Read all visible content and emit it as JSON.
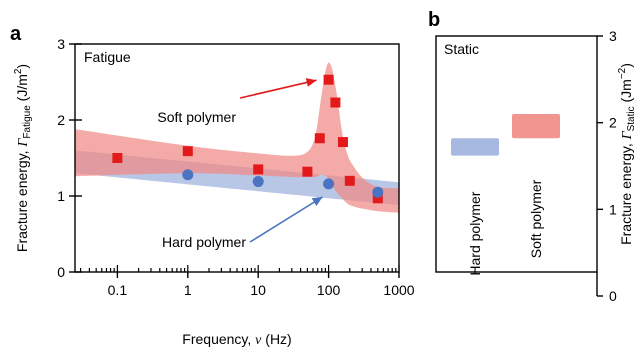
{
  "colors": {
    "soft": "#e31a1c",
    "soft_band": "#f08a85",
    "hard": "#4a73c2",
    "hard_band": "#9eb1de",
    "axis": "#000000"
  },
  "chart_data": [
    {
      "type": "scatter",
      "panel_label": "a",
      "panel_title": "Fatigue",
      "xscale": "log",
      "xlim": [
        0.025,
        1000
      ],
      "ylim": [
        0,
        3
      ],
      "xticks": [
        0.1,
        1,
        10,
        100,
        1000
      ],
      "xtick_labels": [
        "0.1",
        "1",
        "10",
        "100",
        "1000"
      ],
      "yticks": [
        0,
        1,
        2,
        3
      ],
      "ytick_labels": [
        "0",
        "1",
        "2",
        "3"
      ],
      "xlabel_prefix": "Frequency, ",
      "xlabel_symbol": "ν",
      "xlabel_suffix": " (Hz)",
      "ylabel_prefix": "Fracture energy, ",
      "ylabel_symbol": "Γ",
      "ylabel_subscript": "Fatigue",
      "ylabel_units": " (J/m",
      "ylabel_units_sup": "2",
      "ylabel_units_end": ")",
      "series": [
        {
          "name": "Soft polymer",
          "marker": "square",
          "color": "soft",
          "x": [
            0.1,
            1,
            10,
            50,
            75,
            100,
            125,
            160,
            200,
            500
          ],
          "y": [
            1.5,
            1.59,
            1.35,
            1.32,
            1.76,
            2.53,
            2.23,
            1.71,
            1.2,
            0.97
          ]
        },
        {
          "name": "Hard polymer",
          "marker": "circle",
          "color": "hard",
          "x": [
            1,
            10,
            100,
            500
          ],
          "y": [
            1.28,
            1.19,
            1.16,
            1.05
          ]
        }
      ],
      "bands": [
        {
          "series": "Hard polymer",
          "color": "hard_band",
          "x": [
            0.025,
            1000
          ],
          "upper": [
            1.6,
            1.18
          ],
          "lower": [
            1.3,
            0.88
          ]
        },
        {
          "series": "Soft polymer",
          "color": "soft_band",
          "x": [
            0.025,
            1,
            10,
            30,
            50,
            65,
            80,
            95,
            110,
            130,
            155,
            185,
            230,
            320,
            500,
            1000
          ],
          "upper": [
            1.88,
            1.66,
            1.56,
            1.53,
            1.58,
            1.8,
            2.35,
            2.72,
            2.7,
            2.35,
            1.85,
            1.55,
            1.38,
            1.22,
            1.12,
            1.1
          ],
          "lower": [
            1.26,
            1.3,
            1.27,
            1.25,
            1.25,
            1.25,
            1.28,
            1.25,
            1.15,
            1.05,
            0.97,
            0.9,
            0.86,
            0.83,
            0.8,
            0.78
          ]
        }
      ],
      "annotations": [
        {
          "text": "Soft polymer",
          "color": "soft",
          "arrow_to": {
            "x": 100,
            "y": 2.55
          }
        },
        {
          "text": "Hard polymer",
          "color": "hard",
          "arrow_to": {
            "x": 100,
            "y": 1.12
          }
        }
      ]
    },
    {
      "type": "bar",
      "panel_label": "b",
      "panel_title": "Static",
      "ylim": [
        0,
        3
      ],
      "yticks": [
        0,
        1,
        2,
        3
      ],
      "ytick_labels": [
        "0",
        "1",
        "2",
        "3"
      ],
      "ylabel_prefix": "Fracture energy, ",
      "ylabel_symbol": "Γ",
      "ylabel_subscript": "Static",
      "ylabel_units": " (Jm",
      "ylabel_units_sup": "−2",
      "ylabel_units_end": ")",
      "categories": [
        "Hard polymer",
        "Soft polymer"
      ],
      "ranges": [
        {
          "name": "Hard polymer",
          "color": "hard_band",
          "label_color": "hard",
          "low": 1.62,
          "high": 1.82
        },
        {
          "name": "Soft polymer",
          "color": "soft_band",
          "label_color": "soft",
          "low": 1.82,
          "high": 2.1
        }
      ]
    }
  ]
}
